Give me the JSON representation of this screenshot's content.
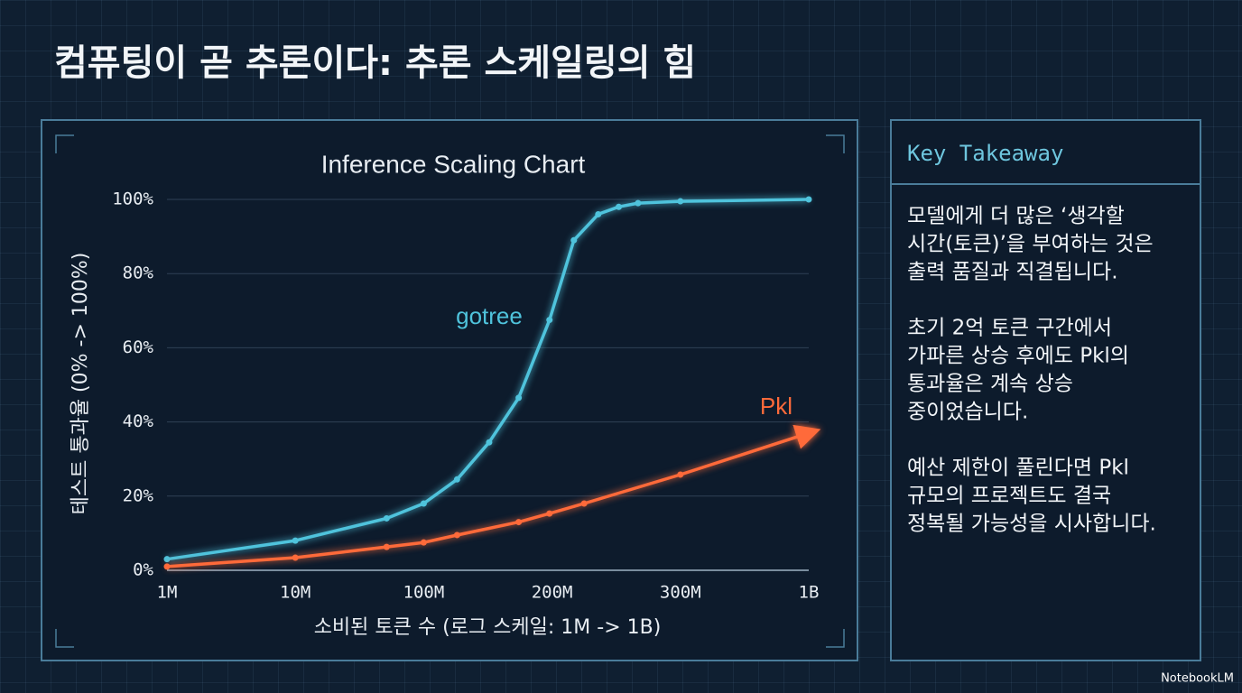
{
  "title": "컴퓨팅이 곧 추론이다: 추론 스케일링의 힘",
  "chart_data": {
    "type": "line",
    "title": "Inference Scaling Chart",
    "x_label": "소비된 토큰 수 (로그 스케일: 1M -> 1B)",
    "y_label": "테스트 통과율 (0% -> 100%)",
    "xticks": [
      {
        "value": 1,
        "label": "1M"
      },
      {
        "value": 10,
        "label": "10M"
      },
      {
        "value": 100,
        "label": "100M"
      },
      {
        "value": 200,
        "label": "200M"
      },
      {
        "value": 300,
        "label": "300M"
      },
      {
        "value": 1000,
        "label": "1B"
      }
    ],
    "xlim": [
      1,
      1000
    ],
    "ylim": [
      0,
      100
    ],
    "yticks": [
      {
        "value": 0,
        "label": "0%"
      },
      {
        "value": 20,
        "label": "20%"
      },
      {
        "value": 40,
        "label": "40%"
      },
      {
        "value": 60,
        "label": "60%"
      },
      {
        "value": 80,
        "label": "80%"
      },
      {
        "value": 100,
        "label": "100%"
      }
    ],
    "grid": true,
    "series": [
      {
        "name": "gotree",
        "color": "#4fc3dc",
        "x": [
          1,
          10,
          74,
          100,
          126,
          151,
          174,
          198,
          217,
          236,
          252,
          267,
          300,
          1000
        ],
        "values": [
          3,
          8,
          14,
          18,
          24.5,
          34.5,
          46.5,
          67.5,
          89,
          96,
          98,
          99,
          99.5,
          100
        ]
      },
      {
        "name": "Pkl",
        "color": "#ff6a3a",
        "arrow": true,
        "x": [
          1,
          10,
          74,
          100,
          126,
          174,
          198,
          225,
          300,
          1000
        ],
        "values": [
          1,
          3.4,
          6.3,
          7.5,
          9.5,
          13,
          15.3,
          18,
          25.8,
          37
        ]
      }
    ]
  },
  "takeaway": {
    "header": "Key Takeaway",
    "paragraphs": [
      [
        "모델에게 더 많은 ‘생각할",
        "시간(토큰)’을 부여하는 것은",
        "출력 품질과 직결됩니다."
      ],
      [
        "초기 2억 토큰 구간에서",
        "가파른 상승 후에도 Pkl의",
        "통과율은 계속 상승",
        "중이었습니다."
      ],
      [
        "예산 제한이 풀린다면 Pkl",
        "규모의 프로젝트도 결국",
        "정복될 가능성을 시사합니다."
      ]
    ]
  },
  "footer": "NotebookLM"
}
